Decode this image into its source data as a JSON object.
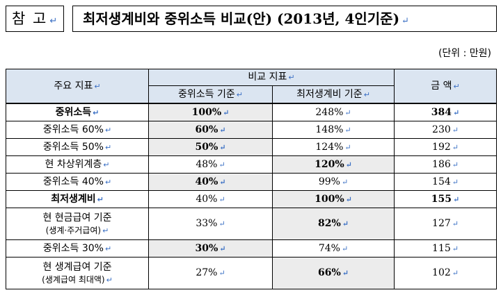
{
  "tag_label": "참 고",
  "title": "최저생계비와 중위소득 비교(안) (2013년, 4인기준)",
  "unit": "(단위 : 만원)",
  "headers": {
    "indicator": "주요 지표",
    "compare": "비교 지표",
    "vs_median": "중위소득 기준",
    "vs_minimum": "최저생계비 기준",
    "amount": "금 액"
  },
  "rows": [
    {
      "label": "중위소득",
      "sub": "",
      "median_pct": "100%",
      "min_pct": "248%",
      "amount": "384"
    },
    {
      "label": "중위소득 60%",
      "sub": "",
      "median_pct": "60%",
      "min_pct": "148%",
      "amount": "230"
    },
    {
      "label": "중위소득 50%",
      "sub": "",
      "median_pct": "50%",
      "min_pct": "124%",
      "amount": "192"
    },
    {
      "label": "현 차상위계층",
      "sub": "",
      "median_pct": "48%",
      "min_pct": "120%",
      "amount": "186"
    },
    {
      "label": "중위소득 40%",
      "sub": "",
      "median_pct": "40%",
      "min_pct": "99%",
      "amount": "154"
    },
    {
      "label": "최저생계비",
      "sub": "",
      "median_pct": "40%",
      "min_pct": "100%",
      "amount": "155"
    },
    {
      "label": "현 현금급여 기준",
      "sub": "(생계·주거급여)",
      "median_pct": "33%",
      "min_pct": "82%",
      "amount": "127"
    },
    {
      "label": "중위소득 30%",
      "sub": "",
      "median_pct": "30%",
      "min_pct": "74%",
      "amount": "115"
    },
    {
      "label": "현 생계급여 기준",
      "sub": "(생계급여 최대액)",
      "median_pct": "27%",
      "min_pct": "66%",
      "amount": "102"
    }
  ],
  "paragraph_mark": "↵",
  "colors": {
    "header_bg": "#dbe5f1",
    "highlight_bg": "#ececec",
    "para_mark": "#3a6fc4"
  }
}
